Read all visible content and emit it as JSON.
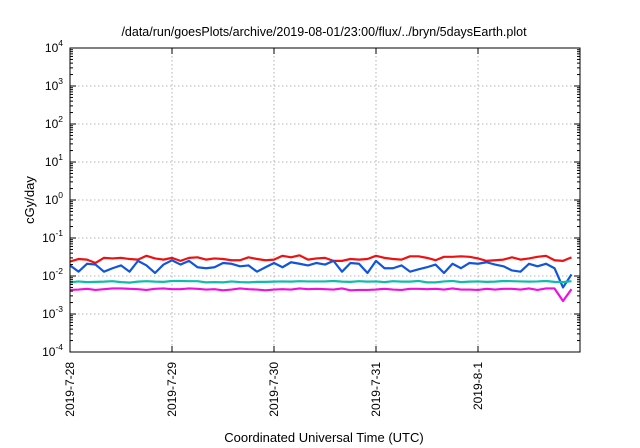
{
  "chart_data": {
    "type": "line",
    "title": "/data/run/goesPlots/archive/2019-08-01/23:00/flux/../bryn/5daysEarth.plot",
    "xlabel": "Coordinated Universal Time (UTC)",
    "ylabel": "cGy/day",
    "x_scale": "time",
    "x_range": [
      "2019-07-28 00:00",
      "2019-08-02 00:00"
    ],
    "x_ticks": [
      "2019-7-28",
      "2019-7-29",
      "2019-7-30",
      "2019-7-31",
      "2019-8-1"
    ],
    "y_scale": "log",
    "ylim": [
      0.0001,
      10000
    ],
    "y_ticks": [
      {
        "base": "10",
        "exp": "-4",
        "value": 0.0001
      },
      {
        "base": "10",
        "exp": "-3",
        "value": 0.001
      },
      {
        "base": "10",
        "exp": "-2",
        "value": 0.01
      },
      {
        "base": "10",
        "exp": "-1",
        "value": 0.1
      },
      {
        "base": "10",
        "exp": "0",
        "value": 1
      },
      {
        "base": "10",
        "exp": "1",
        "value": 10
      },
      {
        "base": "10",
        "exp": "2",
        "value": 100
      },
      {
        "base": "10",
        "exp": "3",
        "value": 1000
      },
      {
        "base": "10",
        "exp": "4",
        "value": 10000
      }
    ],
    "grid": true,
    "sample_interval_hours": 2,
    "series": [
      {
        "color": "#ee1111",
        "values": [
          0.024,
          0.028,
          0.027,
          0.022,
          0.03,
          0.029,
          0.03,
          0.028,
          0.027,
          0.034,
          0.029,
          0.027,
          0.03,
          0.025,
          0.03,
          0.031,
          0.027,
          0.029,
          0.028,
          0.026,
          0.026,
          0.031,
          0.028,
          0.026,
          0.027,
          0.034,
          0.031,
          0.035,
          0.027,
          0.029,
          0.03,
          0.025,
          0.025,
          0.028,
          0.027,
          0.028,
          0.034,
          0.03,
          0.028,
          0.027,
          0.033,
          0.033,
          0.03,
          0.026,
          0.032,
          0.032,
          0.033,
          0.032,
          0.029,
          0.025,
          0.026,
          0.027,
          0.031,
          0.027,
          0.029,
          0.032,
          0.034,
          0.026,
          0.025,
          0.031
        ]
      },
      {
        "color": "#1155dd",
        "values": [
          0.019,
          0.013,
          0.021,
          0.02,
          0.013,
          0.016,
          0.019,
          0.013,
          0.025,
          0.019,
          0.012,
          0.02,
          0.026,
          0.02,
          0.025,
          0.017,
          0.016,
          0.017,
          0.022,
          0.021,
          0.018,
          0.019,
          0.013,
          0.017,
          0.022,
          0.017,
          0.023,
          0.021,
          0.019,
          0.022,
          0.02,
          0.025,
          0.013,
          0.022,
          0.021,
          0.012,
          0.025,
          0.016,
          0.016,
          0.019,
          0.013,
          0.015,
          0.017,
          0.02,
          0.012,
          0.021,
          0.016,
          0.022,
          0.021,
          0.023,
          0.02,
          0.018,
          0.014,
          0.013,
          0.021,
          0.018,
          0.021,
          0.016,
          0.005,
          0.011
        ]
      },
      {
        "color": "#11bbaa",
        "values": [
          0.0068,
          0.0072,
          0.0069,
          0.007,
          0.0071,
          0.0073,
          0.0069,
          0.0067,
          0.0071,
          0.0073,
          0.0071,
          0.007,
          0.0074,
          0.0074,
          0.0073,
          0.0073,
          0.0068,
          0.0069,
          0.0068,
          0.0072,
          0.0069,
          0.0068,
          0.007,
          0.007,
          0.0071,
          0.0072,
          0.0071,
          0.0073,
          0.0072,
          0.0072,
          0.0072,
          0.0074,
          0.0071,
          0.007,
          0.0073,
          0.0071,
          0.0072,
          0.0069,
          0.0073,
          0.0071,
          0.0071,
          0.0074,
          0.0068,
          0.0068,
          0.0072,
          0.0074,
          0.0069,
          0.0071,
          0.0072,
          0.007,
          0.0071,
          0.0074,
          0.0073,
          0.0072,
          0.0071,
          0.0072,
          0.0074,
          0.007,
          0.0069,
          0.0073
        ]
      },
      {
        "color": "#ee11dd",
        "values": [
          0.0043,
          0.0044,
          0.0046,
          0.0043,
          0.0045,
          0.0047,
          0.0047,
          0.0046,
          0.0045,
          0.0043,
          0.0046,
          0.0047,
          0.0045,
          0.0045,
          0.0047,
          0.0046,
          0.0044,
          0.0045,
          0.0042,
          0.0044,
          0.0047,
          0.0045,
          0.0044,
          0.0042,
          0.0044,
          0.0045,
          0.0044,
          0.0047,
          0.0045,
          0.0046,
          0.0045,
          0.0044,
          0.0047,
          0.0042,
          0.0043,
          0.0043,
          0.0044,
          0.0046,
          0.0044,
          0.0043,
          0.0046,
          0.0046,
          0.0045,
          0.0046,
          0.0044,
          0.0047,
          0.0044,
          0.0044,
          0.0043,
          0.0046,
          0.0044,
          0.0046,
          0.0046,
          0.0044,
          0.0047,
          0.0043,
          0.0047,
          0.0047,
          0.0022,
          0.0045
        ]
      }
    ]
  }
}
